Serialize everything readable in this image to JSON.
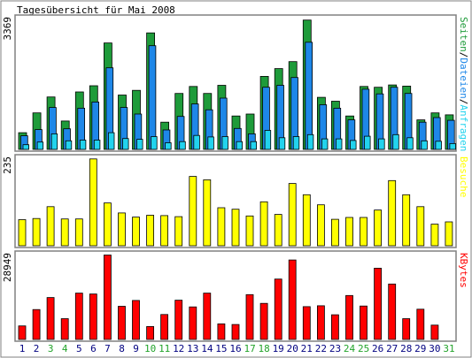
{
  "title": "Tagesübersicht für Mai 2008",
  "colors": {
    "background": "#ffffff",
    "frame": "#000000",
    "gray": "#808080",
    "pages": "#1e9b3a",
    "files": "#1e87e8",
    "requests": "#22d3ee",
    "visits": "#ffff00",
    "kbytes": "#ff0000",
    "weekday": "#000080",
    "weekend": "#22a32a"
  },
  "chart_data": [
    {
      "type": "bar",
      "name": "hits-panel",
      "max_label": "3369",
      "right_label_parts": [
        {
          "text": "Seiten",
          "color_key": "pages"
        },
        {
          "text": "/",
          "color_key": "frame"
        },
        {
          "text": "Dateien",
          "color_key": "files"
        },
        {
          "text": "/",
          "color_key": "frame"
        },
        {
          "text": "Anfragen",
          "color_key": "requests"
        }
      ],
      "categories": [
        "1",
        "2",
        "3",
        "4",
        "5",
        "6",
        "7",
        "8",
        "9",
        "10",
        "11",
        "12",
        "13",
        "14",
        "15",
        "16",
        "17",
        "18",
        "19",
        "20",
        "21",
        "22",
        "23",
        "24",
        "25",
        "26",
        "27",
        "28",
        "29",
        "30",
        "31"
      ],
      "weekend": [
        3,
        4,
        10,
        11,
        17,
        18,
        24,
        25,
        31
      ],
      "ylim": [
        0,
        3369
      ],
      "series": [
        {
          "color_key": "pages",
          "values": [
            430,
            940,
            1350,
            730,
            1480,
            1640,
            2740,
            1400,
            1520,
            3000,
            700,
            1440,
            1620,
            1440,
            1650,
            860,
            910,
            1880,
            2080,
            2260,
            3330,
            1340,
            1240,
            860,
            1620,
            1600,
            1660,
            1630,
            760,
            940,
            890
          ]
        },
        {
          "color_key": "files",
          "values": [
            350,
            510,
            1080,
            530,
            1060,
            1220,
            2100,
            1080,
            910,
            2670,
            500,
            850,
            1170,
            1020,
            1320,
            540,
            400,
            1600,
            1650,
            1850,
            2760,
            1150,
            1060,
            760,
            1550,
            1430,
            1600,
            1440,
            700,
            820,
            750
          ]
        },
        {
          "color_key": "requests",
          "values": [
            120,
            190,
            400,
            220,
            240,
            240,
            430,
            280,
            260,
            330,
            170,
            200,
            360,
            320,
            330,
            200,
            200,
            490,
            300,
            330,
            380,
            270,
            270,
            230,
            340,
            270,
            380,
            300,
            220,
            210,
            150
          ]
        }
      ]
    },
    {
      "type": "bar",
      "name": "visits-panel",
      "max_label": "235",
      "right_label_parts": [
        {
          "text": "Besuche",
          "color_key": "visits"
        }
      ],
      "categories": [
        "1",
        "2",
        "3",
        "4",
        "5",
        "6",
        "7",
        "8",
        "9",
        "10",
        "11",
        "12",
        "13",
        "14",
        "15",
        "16",
        "17",
        "18",
        "19",
        "20",
        "21",
        "22",
        "23",
        "24",
        "25",
        "26",
        "27",
        "28",
        "29",
        "30",
        "31"
      ],
      "weekend": [
        3,
        4,
        10,
        11,
        17,
        18,
        24,
        25,
        31
      ],
      "ylim": [
        0,
        235
      ],
      "series": [
        {
          "color_key": "visits",
          "values": [
            70,
            73,
            105,
            72,
            72,
            233,
            115,
            88,
            77,
            82,
            81,
            78,
            186,
            177,
            102,
            98,
            80,
            118,
            84,
            167,
            137,
            110,
            71,
            76,
            76,
            96,
            175,
            137,
            105,
            58,
            64
          ]
        }
      ]
    },
    {
      "type": "bar",
      "name": "kbytes-panel",
      "max_label": "28949",
      "right_label_parts": [
        {
          "text": "KBytes",
          "color_key": "kbytes"
        }
      ],
      "categories": [
        "1",
        "2",
        "3",
        "4",
        "5",
        "6",
        "7",
        "8",
        "9",
        "10",
        "11",
        "12",
        "13",
        "14",
        "15",
        "16",
        "17",
        "18",
        "19",
        "20",
        "21",
        "22",
        "23",
        "24",
        "25",
        "26",
        "27",
        "28",
        "29",
        "30",
        "31"
      ],
      "weekend": [
        3,
        4,
        10,
        11,
        17,
        18,
        24,
        25,
        31
      ],
      "ylim": [
        0,
        28949
      ],
      "series": [
        {
          "color_key": "kbytes",
          "values": [
            4600,
            10200,
            14300,
            7100,
            15800,
            15500,
            28800,
            11300,
            13300,
            4400,
            8500,
            13400,
            11100,
            15800,
            5300,
            5100,
            15300,
            12300,
            20600,
            27100,
            11200,
            11500,
            8400,
            15000,
            11400,
            24300,
            18900,
            7100,
            10300,
            4900,
            0
          ]
        }
      ]
    }
  ]
}
